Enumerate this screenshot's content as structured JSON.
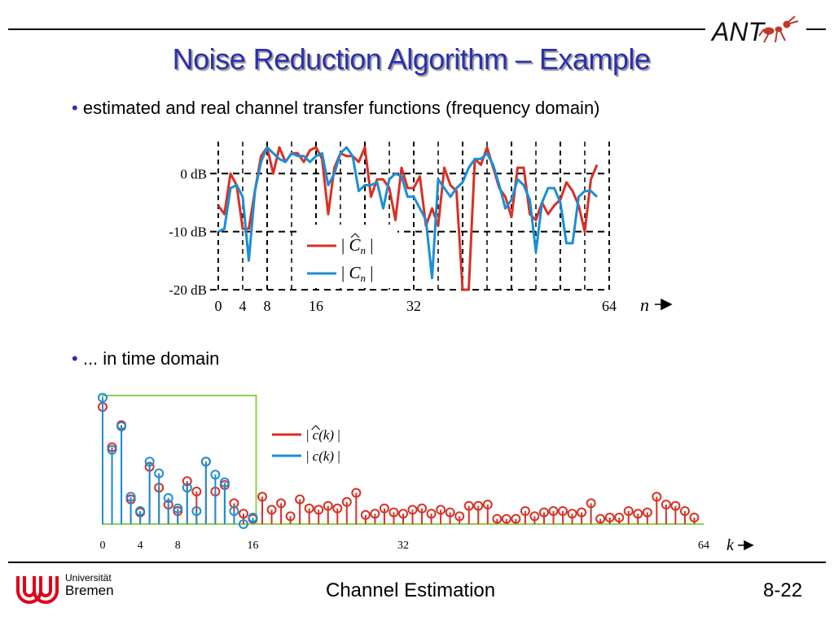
{
  "title": "Noise Reduction Algorithm – Example",
  "bullets": [
    {
      "symbol": "•",
      "text": "estimated and real channel transfer functions (frequency domain)"
    },
    {
      "symbol": "•",
      "text": "... in time domain"
    }
  ],
  "logo_text": "ANT",
  "footer": {
    "university_line1": "Universität",
    "university_line2": "Bremen",
    "center": "Channel Estimation",
    "page": "8-22"
  },
  "colors": {
    "title": "#2b2fb0",
    "estimated": "#d93025",
    "real": "#1a8fd6",
    "window": "#8fd14f"
  },
  "chart_data": [
    {
      "type": "line",
      "title": "estimated and real channel transfer functions (frequency domain)",
      "xlabel": "n",
      "ylabel": "",
      "x_ticks": [
        "0",
        "4",
        "8",
        "16",
        "32",
        "64"
      ],
      "x_tick_values": [
        0,
        4,
        8,
        16,
        32,
        64
      ],
      "y_ticks": [
        "0 dB",
        "-10 dB",
        "-20 dB"
      ],
      "y_tick_values": [
        0,
        -10,
        -20
      ],
      "xlim": [
        0,
        64
      ],
      "ylim": [
        -20,
        5.5
      ],
      "legend": {
        "position": "center",
        "entries": [
          {
            "series": "estimated",
            "prefix": "| ",
            "symbol": "C",
            "hat": true,
            "subscript": "n",
            "suffix": " |"
          },
          {
            "series": "real",
            "prefix": "| ",
            "symbol": "C",
            "hat": false,
            "subscript": "n",
            "suffix": " |"
          }
        ]
      },
      "series": [
        {
          "name": "estimated",
          "color_key": "estimated",
          "values": [
            -5.5,
            -7,
            0,
            -2,
            -9.5,
            -9.5,
            -3,
            3,
            4.5,
            0,
            4.5,
            2,
            3.5,
            3.5,
            2,
            4,
            4.5,
            2.5,
            -7,
            1,
            3.5,
            3,
            3,
            2,
            4.5,
            -4,
            -1,
            -1,
            -2.5,
            -8,
            1,
            -2.5,
            -2.5,
            -0.5,
            -9,
            -6,
            -9,
            1,
            -2,
            -3,
            -20,
            -20,
            2.5,
            1.5,
            4.5,
            1,
            -2.5,
            -4,
            -7.5,
            1,
            1,
            -7,
            -8,
            -5,
            -7,
            -5.5,
            -4.5,
            -1.5,
            -3,
            -5.5,
            -10,
            -1,
            1.5
          ]
        },
        {
          "name": "real",
          "color_key": "real",
          "values": [
            -10,
            -9.5,
            -2.5,
            -2,
            -4,
            -15,
            -3,
            2,
            4.5,
            3.5,
            2.5,
            2,
            3.5,
            3,
            3,
            2,
            3,
            3.5,
            -2,
            0,
            3.5,
            4.5,
            3,
            -3,
            -2,
            -2,
            -1.5,
            -6,
            -1,
            0,
            -0.5,
            -4,
            -4,
            -6,
            -8,
            -18,
            -1,
            -2.5,
            -4,
            -2.5,
            -1.5,
            1,
            2.5,
            2.5,
            3.5,
            1.5,
            -2,
            -6,
            -4.5,
            -1,
            -2,
            -4.5,
            -13.5,
            -5,
            -2.5,
            -2.5,
            -5,
            -12,
            -12,
            -4,
            -3,
            -3,
            -4
          ]
        }
      ]
    },
    {
      "type": "stem",
      "title": "... in time domain",
      "xlabel": "k",
      "x_ticks": [
        "0",
        "4",
        "8",
        "16",
        "32",
        "64"
      ],
      "x_tick_values": [
        0,
        4,
        8,
        16,
        32,
        64
      ],
      "xlim": [
        0,
        64
      ],
      "ylim": [
        0,
        1
      ],
      "window": {
        "from": 0,
        "to": 16
      },
      "legend": {
        "position": "center",
        "entries": [
          {
            "series": "estimated",
            "prefix": "| ",
            "symbol": "c",
            "hat": true,
            "arg": "(k)",
            "suffix": " |"
          },
          {
            "series": "real",
            "prefix": "| ",
            "symbol": "c",
            "hat": false,
            "arg": "(k)",
            "suffix": " |"
          }
        ]
      },
      "series": [
        {
          "name": "estimated",
          "color_key": "estimated",
          "values": [
            0.9,
            0.59,
            0.76,
            0.19,
            0.09,
            0.44,
            0.28,
            0.15,
            0.1,
            0.33,
            0.25,
            0.48,
            0.25,
            0.3,
            0.16,
            0.08,
            0.04,
            0.21,
            0.11,
            0.16,
            0.06,
            0.19,
            0.12,
            0.11,
            0.14,
            0.12,
            0.17,
            0.24,
            0.07,
            0.08,
            0.12,
            0.09,
            0.08,
            0.11,
            0.12,
            0.08,
            0.11,
            0.09,
            0.06,
            0.14,
            0.14,
            0.15,
            0.04,
            0.04,
            0.04,
            0.1,
            0.06,
            0.09,
            0.1,
            0.1,
            0.08,
            0.09,
            0.16,
            0.04,
            0.05,
            0.05,
            0.1,
            0.08,
            0.09,
            0.21,
            0.15,
            0.14,
            0.1,
            0.05
          ]
        },
        {
          "name": "real",
          "color_key": "real",
          "values": [
            0.97,
            0.57,
            0.75,
            0.21,
            0.1,
            0.48,
            0.39,
            0.2,
            0.12,
            0.28,
            0.1,
            0.48,
            0.38,
            0.32,
            0.1,
            0.0,
            0.05
          ]
        }
      ]
    }
  ]
}
